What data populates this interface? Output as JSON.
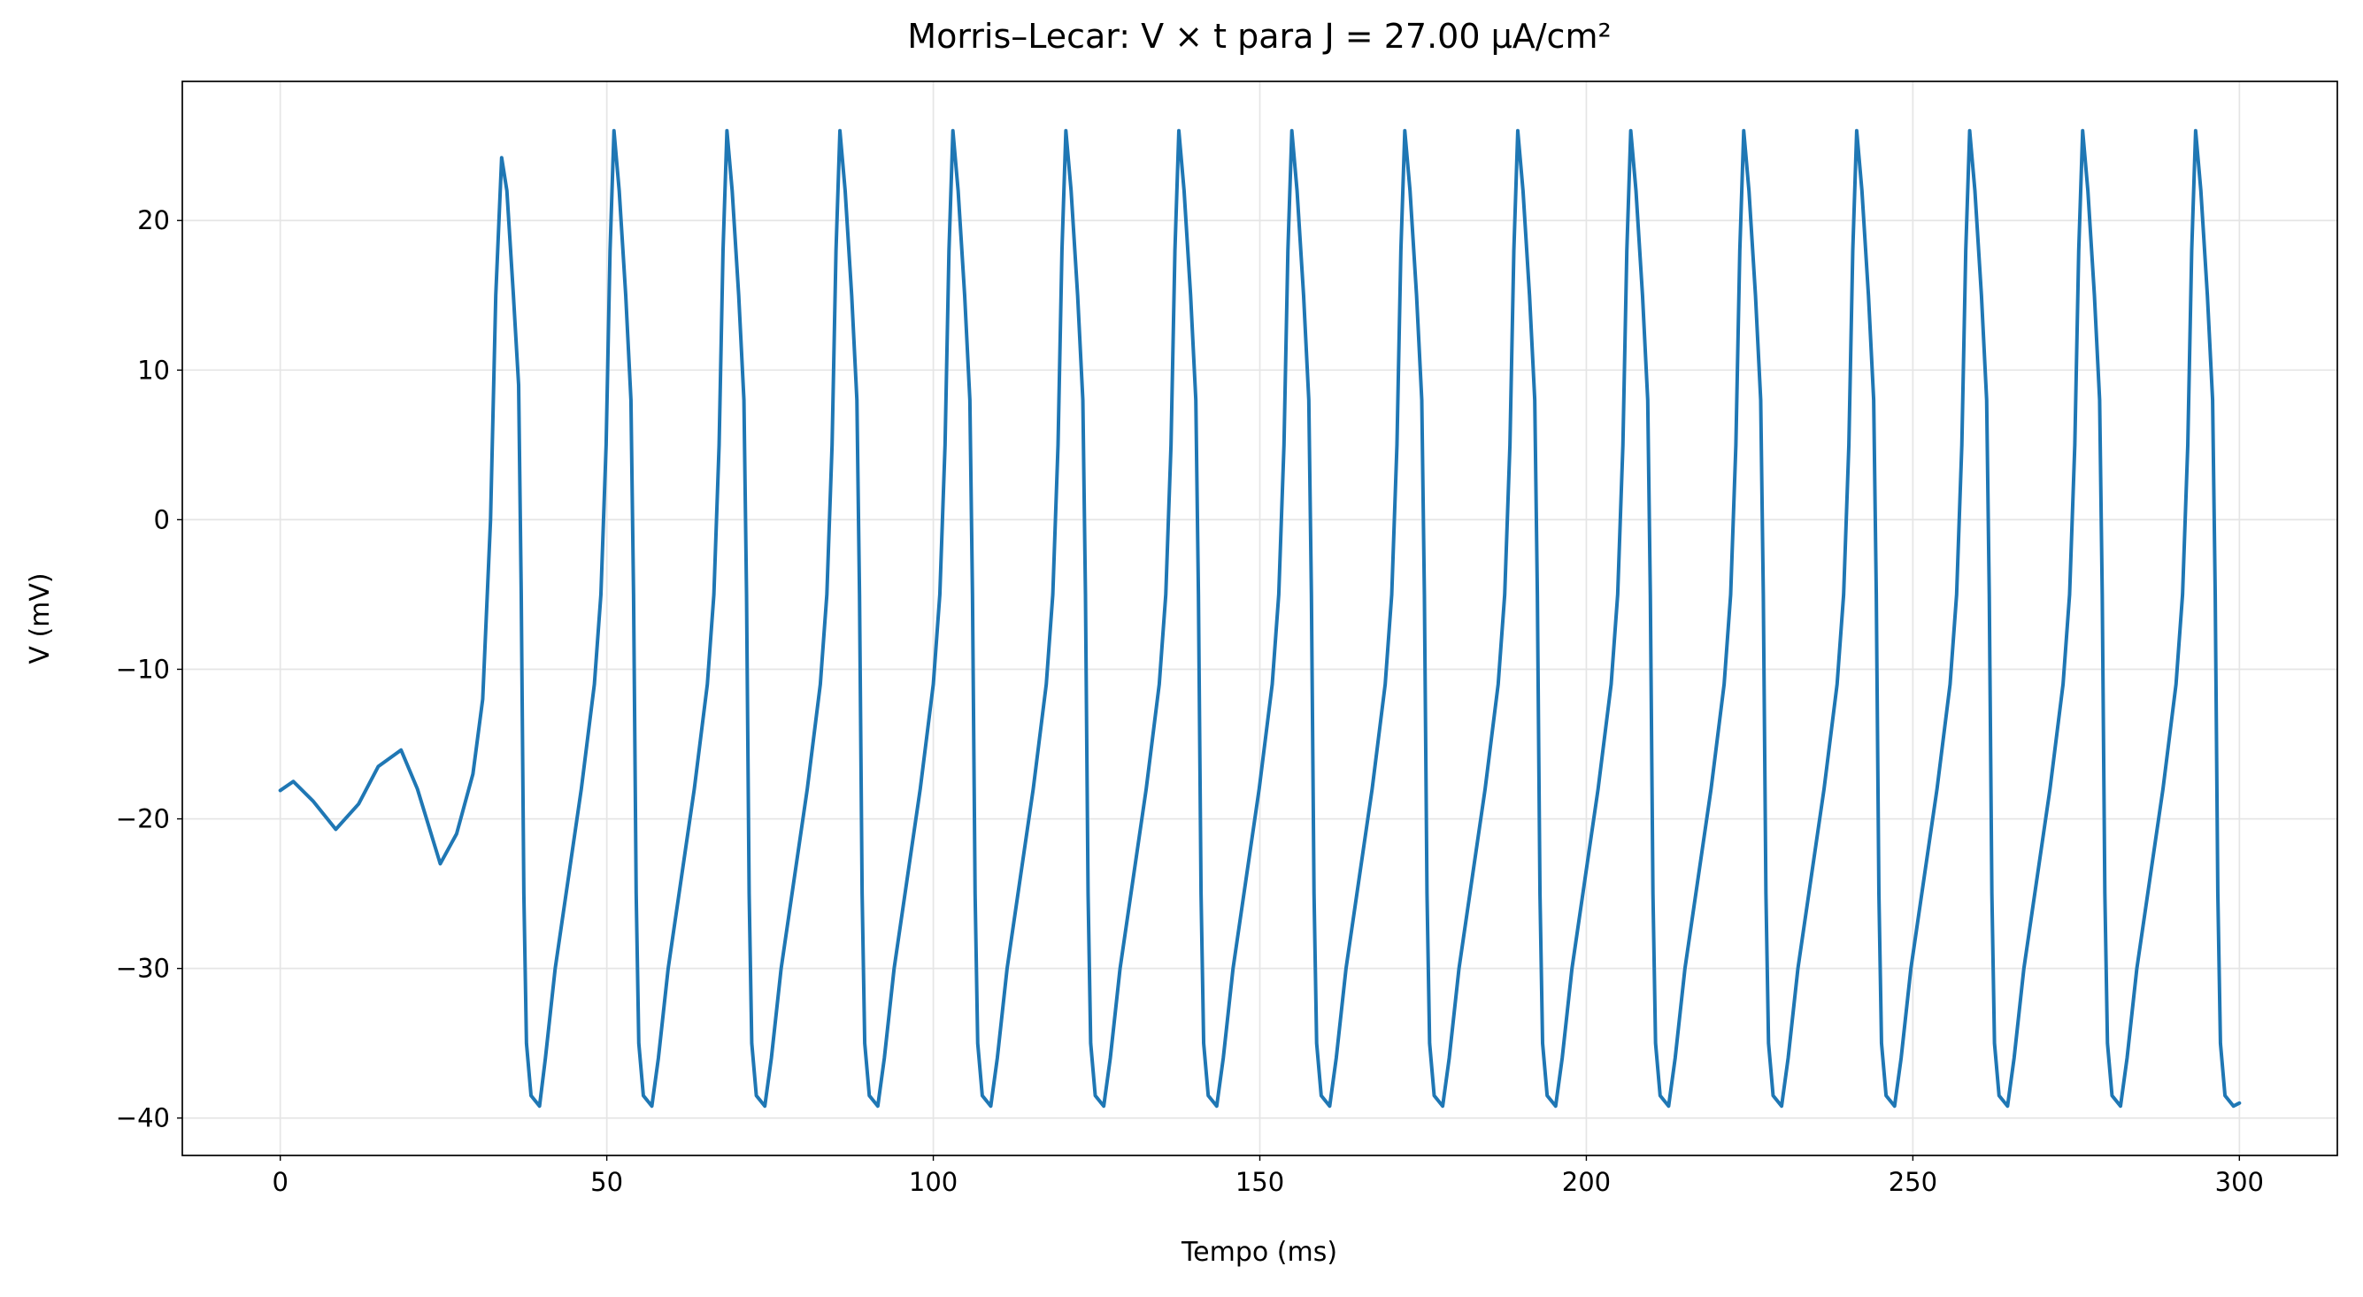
{
  "chart_data": {
    "type": "line",
    "title": "Morris–Lecar: V × t para J = 27.00 µA/cm²",
    "x_label": "Tempo (ms)",
    "y_label": "V (mV)",
    "xlim": [
      -15,
      315
    ],
    "ylim": [
      -42.5,
      29.3
    ],
    "xticks": [
      0,
      50,
      100,
      150,
      200,
      250,
      300
    ],
    "yticks": [
      {
        "value": -40,
        "label": "−40"
      },
      {
        "value": -30,
        "label": "−30"
      },
      {
        "value": -20,
        "label": "−20"
      },
      {
        "value": -10,
        "label": "−10"
      },
      0,
      10,
      20
    ],
    "grid": true,
    "x": [
      0,
      2,
      5,
      8.5,
      12,
      15,
      18.5,
      21,
      24.5,
      27,
      29.5,
      31,
      32.2,
      33,
      33.9,
      34.7,
      35.7,
      36.5,
      36.9,
      37.3,
      37.7,
      38.4,
      39.7,
      40.6,
      42.1,
      44.1,
      46.1,
      48.1,
      49.1,
      49.9,
      50.5,
      51.1,
      51.9,
      52.9,
      53.7,
      54.1,
      54.5,
      54.9,
      55.6,
      56.9,
      57.9,
      59.4,
      61.4,
      63.4,
      65.4,
      66.4,
      67.2,
      67.8,
      68.4,
      69.2,
      70.2,
      71.0,
      71.4,
      71.8,
      72.2,
      72.9,
      74.2,
      75.2,
      76.7,
      78.7,
      80.7,
      82.7,
      83.7,
      84.5,
      85.1,
      85.7,
      86.5,
      87.5,
      88.3,
      88.7,
      89.1,
      89.5,
      90.2,
      91.5,
      92.5,
      94.0,
      96.0,
      98.0,
      100.0,
      101.0,
      101.8,
      102.4,
      103.0,
      103.8,
      104.8,
      105.6,
      106.0,
      106.4,
      106.8,
      107.5,
      108.8,
      109.8,
      111.3,
      113.3,
      115.3,
      117.3,
      118.3,
      119.1,
      119.7,
      120.3,
      121.1,
      122.1,
      122.9,
      123.3,
      123.7,
      124.1,
      124.8,
      126.1,
      127.1,
      128.6,
      130.6,
      132.6,
      134.6,
      135.6,
      136.4,
      137.0,
      137.6,
      138.4,
      139.4,
      140.2,
      140.6,
      141.0,
      141.4,
      142.1,
      143.4,
      144.4,
      145.9,
      147.9,
      149.9,
      151.9,
      152.9,
      153.7,
      154.3,
      154.9,
      155.7,
      156.7,
      157.5,
      157.9,
      158.3,
      158.7,
      159.4,
      160.7,
      161.7,
      163.2,
      165.2,
      167.2,
      169.2,
      170.2,
      171.0,
      171.6,
      172.2,
      173.0,
      174.0,
      174.8,
      175.2,
      175.6,
      176.0,
      176.7,
      178.0,
      179.0,
      180.5,
      182.5,
      184.5,
      186.5,
      187.5,
      188.3,
      188.9,
      189.5,
      190.3,
      191.3,
      192.1,
      192.5,
      192.9,
      193.3,
      194.0,
      195.3,
      196.3,
      197.8,
      199.8,
      201.8,
      203.8,
      204.8,
      205.6,
      206.2,
      206.8,
      207.6,
      208.6,
      209.4,
      209.8,
      210.2,
      210.6,
      211.3,
      212.6,
      213.6,
      215.1,
      217.1,
      219.1,
      221.1,
      222.1,
      222.9,
      223.5,
      224.1,
      224.9,
      225.9,
      226.7,
      227.1,
      227.5,
      227.9,
      228.6,
      229.9,
      230.9,
      232.4,
      234.4,
      236.4,
      238.4,
      239.4,
      240.2,
      240.8,
      241.4,
      242.2,
      243.2,
      244.0,
      244.4,
      244.8,
      245.2,
      245.9,
      247.2,
      248.2,
      249.7,
      251.7,
      253.7,
      255.7,
      256.7,
      257.5,
      258.1,
      258.7,
      259.5,
      260.5,
      261.3,
      261.7,
      262.1,
      262.5,
      263.2,
      264.5,
      265.5,
      267.0,
      269.0,
      271.0,
      273.0,
      274.0,
      274.8,
      275.4,
      276.0,
      276.8,
      277.8,
      278.6,
      279.0,
      279.4,
      279.8,
      280.5,
      281.8,
      282.8,
      284.3,
      286.3,
      288.3,
      290.3,
      291.3,
      292.1,
      292.7,
      293.3,
      294.1,
      295.1,
      295.9,
      296.3,
      296.7,
      297.1,
      297.8,
      299.1,
      300
    ],
    "series": [
      {
        "color": "#1f77b4",
        "values": [
          -18.1,
          -17.5,
          -18.8,
          -20.7,
          -19,
          -16.5,
          -15.4,
          -18,
          -23,
          -21,
          -17,
          -12,
          0,
          15,
          24.2,
          22,
          15,
          9,
          -5,
          -25,
          -35,
          -38.5,
          -39.2,
          -36,
          -30,
          -24,
          -18,
          -11,
          -5,
          5,
          18,
          26,
          22,
          15,
          8,
          -5,
          -25,
          -35,
          -38.5,
          -39.2,
          -36,
          -30,
          -24,
          -18,
          -11,
          -5,
          5,
          18,
          26,
          22,
          15,
          8,
          -5,
          -25,
          -35,
          -38.5,
          -39.2,
          -36,
          -30,
          -24,
          -18,
          -11,
          -5,
          5,
          18,
          26,
          22,
          15,
          8,
          -5,
          -25,
          -35,
          -38.5,
          -39.2,
          -36,
          -30,
          -24,
          -18,
          -11,
          -5,
          5,
          18,
          26,
          22,
          15,
          8,
          -5,
          -25,
          -35,
          -38.5,
          -39.2,
          -36,
          -30,
          -24,
          -18,
          -11,
          -5,
          5,
          18,
          26,
          22,
          15,
          8,
          -5,
          -25,
          -35,
          -38.5,
          -39.2,
          -36,
          -30,
          -24,
          -18,
          -11,
          -5,
          5,
          18,
          26,
          22,
          15,
          8,
          -5,
          -25,
          -35,
          -38.5,
          -39.2,
          -36,
          -30,
          -24,
          -18,
          -11,
          -5,
          5,
          18,
          26,
          22,
          15,
          8,
          -5,
          -25,
          -35,
          -38.5,
          -39.2,
          -36,
          -30,
          -24,
          -18,
          -11,
          -5,
          5,
          18,
          26,
          22,
          15,
          8,
          -5,
          -25,
          -35,
          -38.5,
          -39.2,
          -36,
          -30,
          -24,
          -18,
          -11,
          -5,
          5,
          18,
          26,
          22,
          15,
          8,
          -5,
          -25,
          -35,
          -38.5,
          -39.2,
          -36,
          -30,
          -24,
          -18,
          -11,
          -5,
          5,
          18,
          26,
          22,
          15,
          8,
          -5,
          -25,
          -35,
          -38.5,
          -39.2,
          -36,
          -30,
          -24,
          -18,
          -11,
          -5,
          5,
          18,
          26,
          22,
          15,
          8,
          -5,
          -25,
          -35,
          -38.5,
          -39.2,
          -36,
          -30,
          -24,
          -18,
          -11,
          -5,
          5,
          18,
          26,
          22,
          15,
          8,
          -5,
          -25,
          -35,
          -38.5,
          -39.2,
          -36,
          -30,
          -24,
          -18,
          -11,
          -5,
          5,
          18,
          26,
          22,
          15,
          8,
          -5,
          -25,
          -35,
          -38.5,
          -39.2,
          -36,
          -30,
          -24,
          -18,
          -11,
          -5,
          5,
          18,
          26,
          22,
          15,
          8,
          -5,
          -25,
          -35,
          -38.5,
          -39.2,
          -36,
          -30,
          -24,
          -18,
          -11,
          -5,
          5,
          18,
          26,
          22,
          15,
          8,
          -5,
          -25,
          -35,
          -38.5,
          -39.2,
          -39
        ]
      }
    ]
  }
}
